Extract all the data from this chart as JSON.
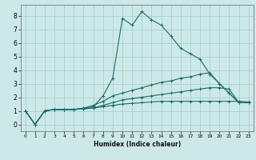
{
  "xlabel": "Humidex (Indice chaleur)",
  "ylabel": "",
  "background_color": "#cce9e8",
  "grid_color": "#aacfce",
  "line_color": "#1a6b6b",
  "xlim": [
    -0.5,
    23.5
  ],
  "ylim": [
    -0.5,
    8.8
  ],
  "xticks": [
    0,
    1,
    2,
    3,
    4,
    5,
    6,
    7,
    8,
    9,
    10,
    11,
    12,
    13,
    14,
    15,
    16,
    17,
    18,
    19,
    20,
    21,
    22,
    23
  ],
  "yticks": [
    0,
    1,
    2,
    3,
    4,
    5,
    6,
    7,
    8
  ],
  "lines": [
    {
      "x": [
        0,
        1,
        2,
        3,
        4,
        5,
        6,
        7,
        8,
        9,
        10,
        11,
        12,
        13,
        14,
        15,
        16,
        17,
        18,
        19,
        20,
        21,
        22,
        23
      ],
      "y": [
        1.0,
        0.0,
        1.0,
        1.1,
        1.1,
        1.1,
        1.2,
        1.3,
        2.1,
        3.4,
        7.8,
        7.3,
        8.3,
        7.7,
        7.3,
        6.5,
        5.6,
        5.2,
        4.8,
        3.7,
        3.0,
        2.3,
        1.6,
        1.6
      ]
    },
    {
      "x": [
        0,
        1,
        2,
        3,
        4,
        5,
        6,
        7,
        8,
        9,
        10,
        11,
        12,
        13,
        14,
        15,
        16,
        17,
        18,
        19,
        20,
        21,
        22,
        23
      ],
      "y": [
        1.0,
        0.0,
        1.0,
        1.1,
        1.1,
        1.1,
        1.2,
        1.4,
        1.7,
        2.1,
        2.3,
        2.5,
        2.7,
        2.9,
        3.1,
        3.2,
        3.4,
        3.5,
        3.7,
        3.8,
        3.0,
        2.3,
        1.6,
        1.6
      ]
    },
    {
      "x": [
        0,
        1,
        2,
        3,
        4,
        5,
        6,
        7,
        8,
        9,
        10,
        11,
        12,
        13,
        14,
        15,
        16,
        17,
        18,
        19,
        20,
        21,
        22,
        23
      ],
      "y": [
        1.0,
        0.0,
        1.0,
        1.1,
        1.1,
        1.1,
        1.15,
        1.2,
        1.3,
        1.4,
        1.5,
        1.55,
        1.6,
        1.65,
        1.7,
        1.7,
        1.7,
        1.7,
        1.7,
        1.7,
        1.7,
        1.7,
        1.7,
        1.65
      ]
    },
    {
      "x": [
        0,
        1,
        2,
        3,
        4,
        5,
        6,
        7,
        8,
        9,
        10,
        11,
        12,
        13,
        14,
        15,
        16,
        17,
        18,
        19,
        20,
        21,
        22,
        23
      ],
      "y": [
        1.0,
        0.0,
        1.0,
        1.1,
        1.1,
        1.1,
        1.15,
        1.2,
        1.4,
        1.6,
        1.8,
        1.9,
        2.0,
        2.1,
        2.2,
        2.3,
        2.4,
        2.5,
        2.6,
        2.7,
        2.7,
        2.6,
        1.6,
        1.6
      ]
    }
  ]
}
